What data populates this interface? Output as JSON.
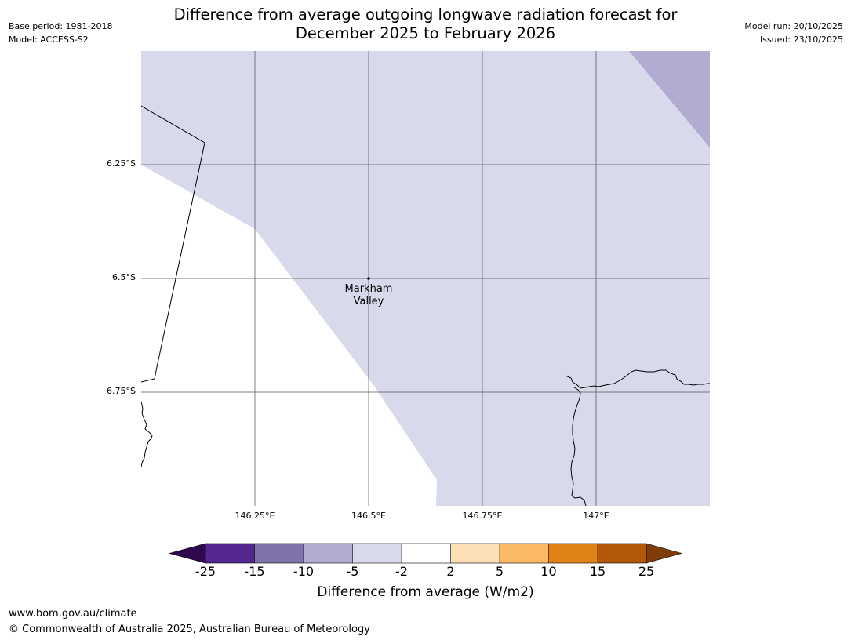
{
  "header": {
    "title_line1": "Difference from average outgoing longwave radiation forecast for",
    "title_line2": "December 2025 to February 2026",
    "base_period": "Base period: 1981-2018",
    "model": "Model: ACCESS-S2",
    "model_run": "Model run: 20/10/2025",
    "issued": "Issued: 23/10/2025"
  },
  "map": {
    "lat_labels": [
      "6.25°S",
      "6.5°S",
      "6.75°S"
    ],
    "lon_labels": [
      "146.25°E",
      "146.5°E",
      "146.75°E",
      "147°E"
    ],
    "place_marker": {
      "name_line1": "Markham",
      "name_line2": "Valley"
    }
  },
  "legend": {
    "title": "Difference from average (W/m2)",
    "ticks": [
      "-25",
      "-15",
      "-10",
      "-5",
      "-2",
      "2",
      "5",
      "10",
      "15",
      "25"
    ],
    "colors": {
      "below_25": "#2d0a4e",
      "m25_m15": "#54278f",
      "m15_m10": "#8073ac",
      "m10_m5": "#b2abd2",
      "m5_m2": "#d8daeb",
      "m2_p2": "#ffffff",
      "p2_p5": "#fee0b6",
      "p5_p10": "#fdb863",
      "p10_p15": "#e08214",
      "p15_p25": "#b35806",
      "above_25": "#7f3b08"
    }
  },
  "footer": {
    "url": "www.bom.gov.au/climate",
    "copyright": "© Commonwealth of Australia 2025, Australian Bureau of Meteorology"
  }
}
